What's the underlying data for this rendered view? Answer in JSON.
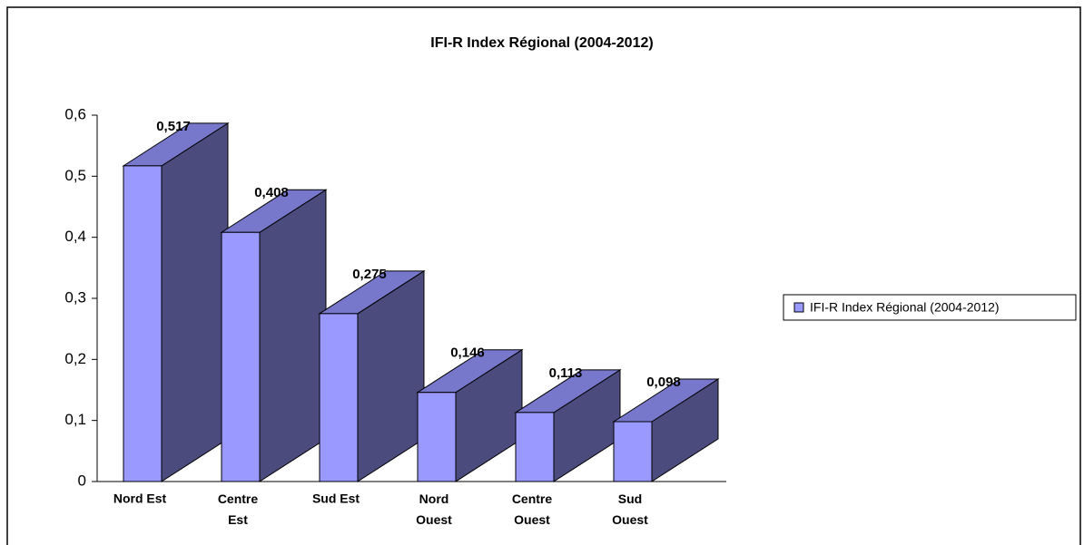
{
  "chart_data": {
    "type": "bar3d",
    "title": "IFI-R Index Régional (2004-2012)",
    "categories": [
      "Nord Est",
      "Centre Est",
      "Sud Est",
      "Nord Ouest",
      "Centre Ouest",
      "Sud Ouest"
    ],
    "series": [
      {
        "name": "IFI-R Index Régional (2004-2012)",
        "color": "#9999ff",
        "values": [
          0.517,
          0.408,
          0.275,
          0.146,
          0.113,
          0.098
        ],
        "value_labels": [
          "0,517",
          "0,408",
          "0,275",
          "0,146",
          "0,113",
          "0,098"
        ]
      }
    ],
    "ylim": [
      0,
      0.6
    ],
    "yticks": [
      0,
      {
        "value": 0.1,
        "label": "0,1"
      },
      {
        "value": 0.2,
        "label": "0,2"
      },
      {
        "value": 0.3,
        "label": "0,3"
      },
      {
        "value": 0.4,
        "label": "0,4"
      },
      {
        "value": 0.5,
        "label": "0,5"
      },
      {
        "value": 0.6,
        "label": "0,6"
      }
    ],
    "legend": "right"
  }
}
